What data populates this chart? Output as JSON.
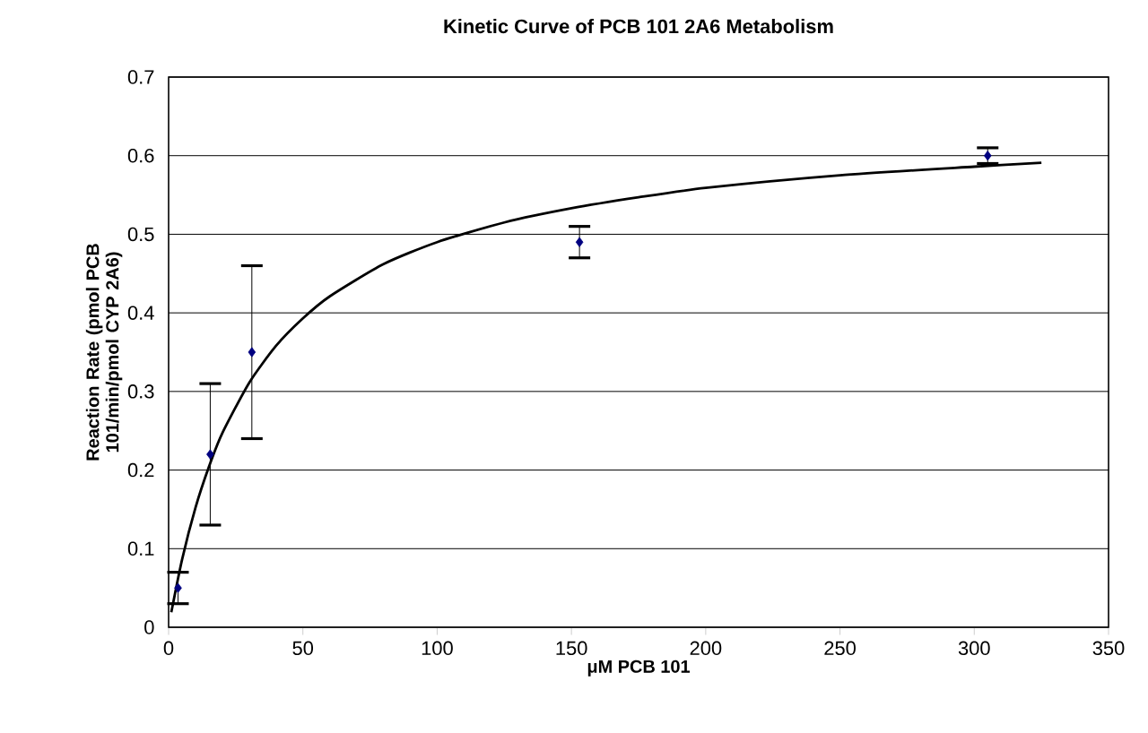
{
  "chart_data": {
    "type": "scatter",
    "title": "Kinetic Curve of PCB 101 2A6 Metabolism",
    "xlabel": "μM PCB 101",
    "ylabel": "Reaction Rate (pmol PCB 101/min/pmol CYP 2A6)",
    "xlim": [
      0,
      350
    ],
    "xticks": [
      0,
      50,
      100,
      150,
      200,
      250,
      300,
      350
    ],
    "ylim": [
      0,
      0.7
    ],
    "yticks": [
      0,
      0.1,
      0.2,
      0.3,
      0.4,
      0.5,
      0.6,
      0.7
    ],
    "grid": "y",
    "series": [
      {
        "type": "scatter",
        "color": "#000080",
        "marker": "diamond",
        "x": [
          3.5,
          15.5,
          31,
          153,
          305
        ],
        "values": [
          0.05,
          0.22,
          0.35,
          0.49,
          0.6
        ],
        "errors": [
          [
            0.03,
            0.07
          ],
          [
            0.13,
            0.31
          ],
          [
            0.24,
            0.46
          ],
          [
            0.47,
            0.51
          ],
          [
            0.59,
            0.61
          ]
        ]
      },
      {
        "type": "line",
        "color": "#000000",
        "marker": "none",
        "line_style": "solid",
        "x": [
          1,
          5,
          10,
          15,
          20,
          30,
          40,
          50,
          60,
          80,
          100,
          125,
          150,
          175,
          200,
          250,
          300,
          325
        ],
        "values": [
          0.019,
          0.086,
          0.152,
          0.204,
          0.247,
          0.311,
          0.358,
          0.393,
          0.421,
          0.462,
          0.49,
          0.515,
          0.533,
          0.547,
          0.559,
          0.575,
          0.586,
          0.591
        ]
      }
    ]
  }
}
